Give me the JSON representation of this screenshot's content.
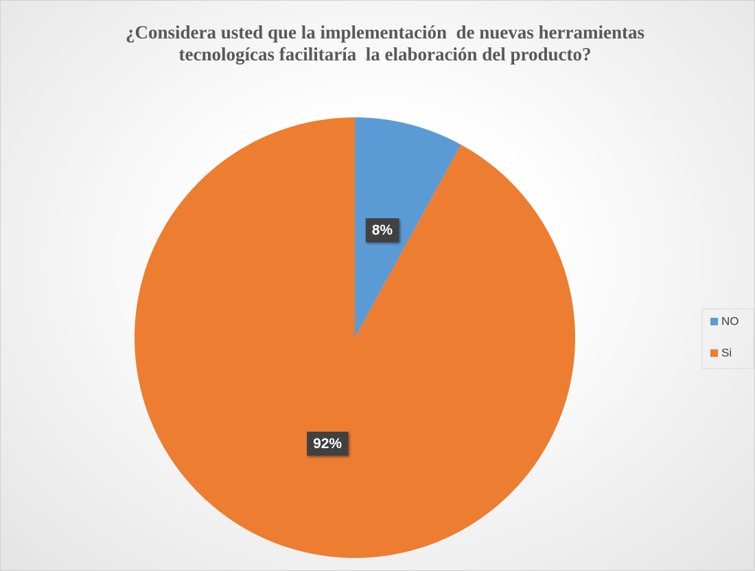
{
  "chart_data": {
    "type": "pie",
    "title": "¿Considera usted que la implementación  de nuevas herramientas  tecnologícas facilitaría  la elaboración del producto?",
    "categories": [
      "NO",
      "Si"
    ],
    "values": [
      8,
      92
    ],
    "value_labels": [
      "8%",
      "92%"
    ],
    "colors": [
      "#5b9bd5",
      "#ed7d31"
    ],
    "legend": "right"
  }
}
